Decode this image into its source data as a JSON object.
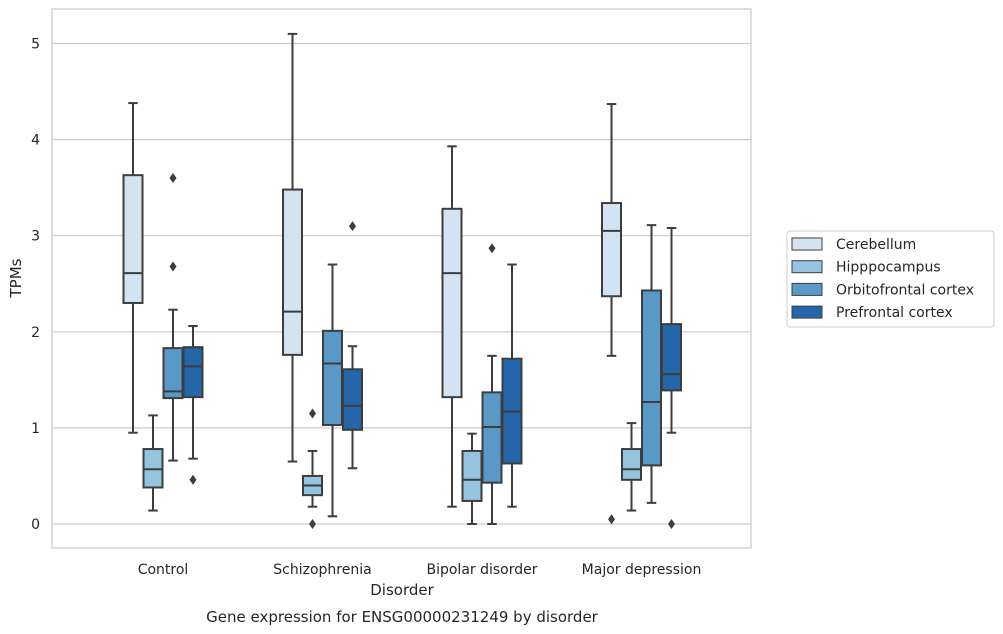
{
  "chart_data": {
    "type": "box",
    "caption": "Gene expression for ENSG00000231249 by disorder",
    "xlabel": "Disorder",
    "ylabel": "TPMs",
    "ylim": [
      -0.25,
      5.35
    ],
    "yticks": [
      0,
      1,
      2,
      3,
      4,
      5
    ],
    "grid": true,
    "legend_position": "right",
    "categories": [
      "Control",
      "Schizophrenia",
      "Bipolar disorder",
      "Major depression"
    ],
    "series": [
      {
        "name": "Cerebellum",
        "color": "#d3e3f2",
        "boxes": [
          {
            "whislo": 0.95,
            "q1": 2.3,
            "med": 2.61,
            "q3": 3.63,
            "whishi": 4.38,
            "fliers": []
          },
          {
            "whislo": 0.65,
            "q1": 1.76,
            "med": 2.21,
            "q3": 3.48,
            "whishi": 5.1,
            "fliers": []
          },
          {
            "whislo": 0.18,
            "q1": 1.32,
            "med": 2.61,
            "q3": 3.28,
            "whishi": 3.93,
            "fliers": []
          },
          {
            "whislo": 1.75,
            "q1": 2.37,
            "med": 3.05,
            "q3": 3.34,
            "whishi": 4.37,
            "fliers": [
              0.05
            ]
          }
        ]
      },
      {
        "name": "Hipppocampus",
        "color": "#94c4df",
        "boxes": [
          {
            "whislo": 0.14,
            "q1": 0.38,
            "med": 0.57,
            "q3": 0.78,
            "whishi": 1.13,
            "fliers": []
          },
          {
            "whislo": 0.18,
            "q1": 0.3,
            "med": 0.4,
            "q3": 0.5,
            "whishi": 0.76,
            "fliers": [
              1.15,
              0.0
            ]
          },
          {
            "whislo": 0.0,
            "q1": 0.24,
            "med": 0.46,
            "q3": 0.76,
            "whishi": 0.94,
            "fliers": []
          },
          {
            "whislo": 0.14,
            "q1": 0.46,
            "med": 0.57,
            "q3": 0.78,
            "whishi": 1.05,
            "fliers": []
          }
        ]
      },
      {
        "name": "Orbitofrontal cortex",
        "color": "#5899c8",
        "boxes": [
          {
            "whislo": 0.66,
            "q1": 1.31,
            "med": 1.38,
            "q3": 1.83,
            "whishi": 2.23,
            "fliers": [
              3.6,
              2.68
            ]
          },
          {
            "whislo": 0.08,
            "q1": 1.03,
            "med": 1.67,
            "q3": 2.01,
            "whishi": 2.7,
            "fliers": []
          },
          {
            "whislo": 0.0,
            "q1": 0.43,
            "med": 1.01,
            "q3": 1.37,
            "whishi": 1.75,
            "fliers": [
              2.87
            ]
          },
          {
            "whislo": 0.22,
            "q1": 0.61,
            "med": 1.27,
            "q3": 2.43,
            "whishi": 3.11,
            "fliers": []
          }
        ]
      },
      {
        "name": "Prefrontal cortex",
        "color": "#2566aa",
        "boxes": [
          {
            "whislo": 0.68,
            "q1": 1.32,
            "med": 1.64,
            "q3": 1.84,
            "whishi": 2.06,
            "fliers": [
              0.46
            ]
          },
          {
            "whislo": 0.58,
            "q1": 0.98,
            "med": 1.23,
            "q3": 1.61,
            "whishi": 1.85,
            "fliers": [
              3.1
            ]
          },
          {
            "whislo": 0.18,
            "q1": 0.63,
            "med": 1.17,
            "q3": 1.72,
            "whishi": 2.7,
            "fliers": []
          },
          {
            "whislo": 0.95,
            "q1": 1.39,
            "med": 1.56,
            "q3": 2.08,
            "whishi": 3.08,
            "fliers": [
              0.0
            ]
          }
        ]
      }
    ]
  }
}
